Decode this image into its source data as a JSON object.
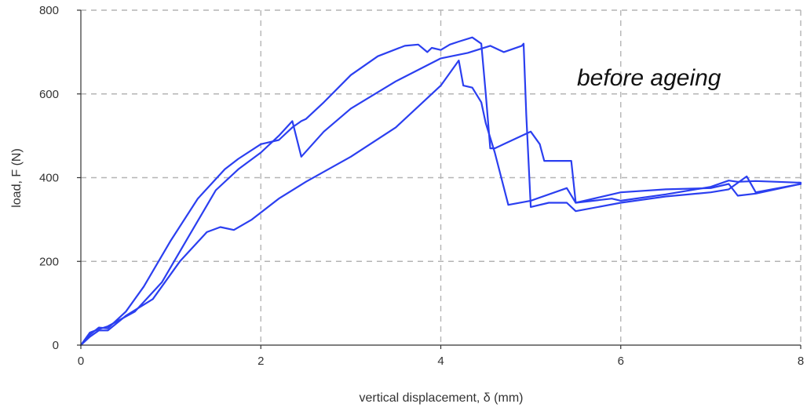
{
  "chart_data": {
    "type": "line",
    "title": "",
    "annotation": "before ageing",
    "xlabel": "vertical displacement, δ (mm)",
    "ylabel": "load, F (N)",
    "xlim": [
      0,
      8
    ],
    "ylim": [
      0,
      800
    ],
    "xticks": [
      0,
      2,
      4,
      6,
      8
    ],
    "yticks": [
      0,
      200,
      400,
      600,
      800
    ],
    "grid": true,
    "legend": "none",
    "color": "#2b3ff0",
    "series": [
      {
        "x": [
          0,
          0.1,
          0.2,
          0.3,
          0.5,
          0.7,
          1.0,
          1.3,
          1.6,
          1.75,
          2.0,
          2.2,
          2.35,
          2.45,
          2.5,
          2.7,
          3.0,
          3.3,
          3.6,
          3.75,
          3.85,
          3.9,
          4.0,
          4.1,
          4.2,
          4.35,
          4.45,
          4.5,
          4.55,
          4.6,
          4.7,
          5.0,
          5.1,
          5.15,
          5.2,
          5.45,
          5.5,
          5.9,
          6.0,
          6.5,
          7.0,
          7.2,
          7.3,
          7.5,
          8.0
        ],
        "y": [
          0,
          25,
          42,
          40,
          80,
          140,
          250,
          350,
          420,
          445,
          480,
          490,
          520,
          535,
          540,
          580,
          645,
          690,
          715,
          718,
          700,
          710,
          705,
          718,
          725,
          735,
          720,
          600,
          470,
          470,
          480,
          510,
          480,
          440,
          440,
          440,
          340,
          350,
          345,
          360,
          378,
          393,
          390,
          392,
          388
        ]
      },
      {
        "x": [
          0,
          0.1,
          0.2,
          0.3,
          0.6,
          0.9,
          1.2,
          1.5,
          1.75,
          2.0,
          2.2,
          2.35,
          2.45,
          2.7,
          3.0,
          3.5,
          4.0,
          4.3,
          4.55,
          4.65,
          4.7,
          4.9,
          4.92,
          4.95,
          5.0,
          5.2,
          5.4,
          5.5,
          6.0,
          6.5,
          7.0,
          7.2,
          7.4,
          7.5,
          8.0
        ],
        "y": [
          0,
          30,
          38,
          45,
          80,
          150,
          260,
          370,
          420,
          460,
          500,
          535,
          450,
          510,
          565,
          630,
          685,
          698,
          715,
          705,
          700,
          715,
          720,
          550,
          330,
          340,
          340,
          320,
          340,
          355,
          365,
          372,
          403,
          365,
          385
        ]
      },
      {
        "x": [
          0,
          0.1,
          0.2,
          0.3,
          0.5,
          0.8,
          1.1,
          1.4,
          1.55,
          1.7,
          1.9,
          2.2,
          2.5,
          3.0,
          3.5,
          4.0,
          4.2,
          4.25,
          4.35,
          4.45,
          4.5,
          4.6,
          4.75,
          5.0,
          5.4,
          5.5,
          6.0,
          6.5,
          7.0,
          7.2,
          7.3,
          7.5,
          8.0
        ],
        "y": [
          0,
          20,
          35,
          35,
          70,
          110,
          200,
          270,
          282,
          275,
          300,
          350,
          390,
          450,
          520,
          620,
          680,
          620,
          615,
          580,
          530,
          460,
          335,
          345,
          375,
          340,
          365,
          372,
          375,
          385,
          357,
          362,
          385
        ]
      }
    ]
  }
}
